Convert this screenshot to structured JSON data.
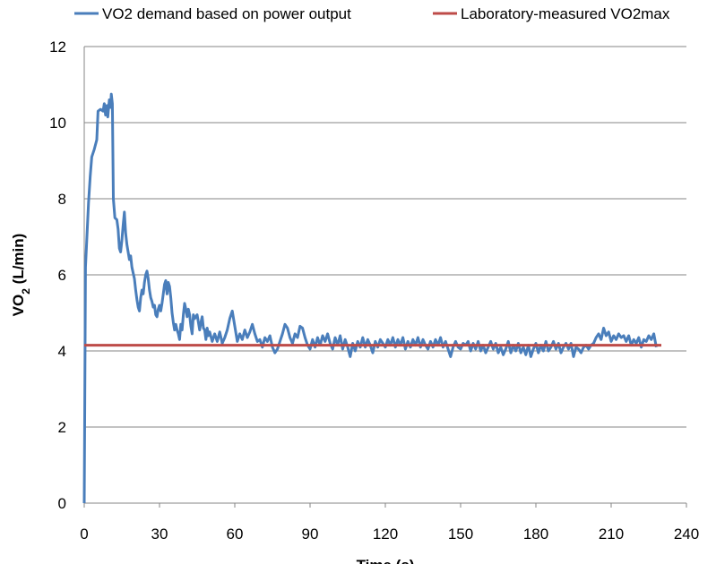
{
  "chart_data": {
    "type": "line",
    "xlabel": "Time (s)",
    "ylabel": {
      "main": "VO",
      "sub": "2",
      "rest": " (L/min)"
    },
    "xlim": [
      0,
      240
    ],
    "ylim": [
      0,
      12
    ],
    "x_ticks": [
      0,
      30,
      60,
      90,
      120,
      150,
      180,
      210,
      240
    ],
    "y_ticks": [
      0,
      2,
      4,
      6,
      8,
      10,
      12
    ],
    "grid": "horizontal",
    "legend_position": "top",
    "series": [
      {
        "name": "VO2 demand based on power output",
        "color": "#4a7ebb",
        "points": [
          [
            0,
            0
          ],
          [
            0.5,
            6.2
          ],
          [
            1,
            6.9
          ],
          [
            1.7,
            7.9
          ],
          [
            2.4,
            8.6
          ],
          [
            3,
            9.1
          ],
          [
            4,
            9.3
          ],
          [
            5,
            9.55
          ],
          [
            5.5,
            10.3
          ],
          [
            6.5,
            10.35
          ],
          [
            7.5,
            10.3
          ],
          [
            8,
            10.5
          ],
          [
            8.5,
            10.2
          ],
          [
            9,
            10.45
          ],
          [
            9.4,
            10.15
          ],
          [
            10,
            10.6
          ],
          [
            10.5,
            10.4
          ],
          [
            10.8,
            10.75
          ],
          [
            11.2,
            10.5
          ],
          [
            11.6,
            8.0
          ],
          [
            12.2,
            7.5
          ],
          [
            13,
            7.45
          ],
          [
            13.5,
            7.2
          ],
          [
            14,
            6.7
          ],
          [
            14.5,
            6.6
          ],
          [
            15,
            6.9
          ],
          [
            15.5,
            7.3
          ],
          [
            16,
            7.65
          ],
          [
            16.5,
            7.1
          ],
          [
            17,
            6.8
          ],
          [
            17.5,
            6.6
          ],
          [
            18,
            6.4
          ],
          [
            18.5,
            6.5
          ],
          [
            19,
            6.2
          ],
          [
            19.5,
            6.05
          ],
          [
            20,
            5.9
          ],
          [
            20.5,
            5.6
          ],
          [
            21,
            5.35
          ],
          [
            21.5,
            5.15
          ],
          [
            22,
            5.05
          ],
          [
            22.5,
            5.4
          ],
          [
            23,
            5.6
          ],
          [
            23.5,
            5.5
          ],
          [
            24,
            5.8
          ],
          [
            24.5,
            6.0
          ],
          [
            25,
            6.1
          ],
          [
            25.5,
            5.9
          ],
          [
            26,
            5.6
          ],
          [
            26.5,
            5.4
          ],
          [
            27,
            5.3
          ],
          [
            27.5,
            5.15
          ],
          [
            28,
            5.2
          ],
          [
            28.5,
            4.95
          ],
          [
            29,
            4.9
          ],
          [
            29.5,
            5.1
          ],
          [
            30,
            5.2
          ],
          [
            30.5,
            5.05
          ],
          [
            31,
            5.25
          ],
          [
            31.5,
            5.5
          ],
          [
            32,
            5.75
          ],
          [
            32.5,
            5.85
          ],
          [
            33,
            5.5
          ],
          [
            33.5,
            5.8
          ],
          [
            34,
            5.7
          ],
          [
            34.5,
            5.4
          ],
          [
            35,
            5.0
          ],
          [
            35.5,
            4.75
          ],
          [
            36,
            4.55
          ],
          [
            36.5,
            4.7
          ],
          [
            37,
            4.55
          ],
          [
            37.5,
            4.45
          ],
          [
            38,
            4.3
          ],
          [
            38.5,
            4.7
          ],
          [
            39,
            4.55
          ],
          [
            39.5,
            4.95
          ],
          [
            40,
            5.25
          ],
          [
            40.5,
            5.1
          ],
          [
            41,
            4.9
          ],
          [
            41.5,
            5.1
          ],
          [
            42,
            4.95
          ],
          [
            42.5,
            4.65
          ],
          [
            43,
            4.45
          ],
          [
            43.5,
            4.95
          ],
          [
            44,
            4.85
          ],
          [
            45,
            4.95
          ],
          [
            45.5,
            4.75
          ],
          [
            46,
            4.55
          ],
          [
            46.5,
            4.75
          ],
          [
            47,
            4.9
          ],
          [
            47.5,
            4.6
          ],
          [
            48,
            4.55
          ],
          [
            48.5,
            4.3
          ],
          [
            49,
            4.6
          ],
          [
            49.5,
            4.4
          ],
          [
            50,
            4.5
          ],
          [
            51,
            4.25
          ],
          [
            52,
            4.45
          ],
          [
            53,
            4.25
          ],
          [
            54,
            4.5
          ],
          [
            55,
            4.2
          ],
          [
            56,
            4.35
          ],
          [
            57,
            4.55
          ],
          [
            58,
            4.85
          ],
          [
            59,
            5.05
          ],
          [
            60,
            4.65
          ],
          [
            61,
            4.25
          ],
          [
            62,
            4.45
          ],
          [
            63,
            4.3
          ],
          [
            64,
            4.55
          ],
          [
            65,
            4.35
          ],
          [
            66,
            4.5
          ],
          [
            67,
            4.7
          ],
          [
            68,
            4.45
          ],
          [
            69,
            4.25
          ],
          [
            70,
            4.3
          ],
          [
            71,
            4.1
          ],
          [
            72,
            4.35
          ],
          [
            73,
            4.25
          ],
          [
            74,
            4.4
          ],
          [
            75,
            4.1
          ],
          [
            76,
            3.95
          ],
          [
            77,
            4.05
          ],
          [
            78,
            4.25
          ],
          [
            79,
            4.45
          ],
          [
            80,
            4.7
          ],
          [
            81,
            4.6
          ],
          [
            82,
            4.35
          ],
          [
            83,
            4.2
          ],
          [
            84,
            4.45
          ],
          [
            85,
            4.35
          ],
          [
            86,
            4.65
          ],
          [
            87,
            4.6
          ],
          [
            88,
            4.35
          ],
          [
            89,
            4.15
          ],
          [
            90,
            4.05
          ],
          [
            91,
            4.3
          ],
          [
            92,
            4.1
          ],
          [
            93,
            4.35
          ],
          [
            94,
            4.15
          ],
          [
            95,
            4.4
          ],
          [
            96,
            4.25
          ],
          [
            97,
            4.45
          ],
          [
            98,
            4.2
          ],
          [
            99,
            4.05
          ],
          [
            100,
            4.35
          ],
          [
            101,
            4.15
          ],
          [
            102,
            4.4
          ],
          [
            103,
            4.05
          ],
          [
            104,
            4.3
          ],
          [
            105,
            4.1
          ],
          [
            106,
            3.85
          ],
          [
            107,
            4.2
          ],
          [
            108,
            4.0
          ],
          [
            109,
            4.25
          ],
          [
            110,
            4.1
          ],
          [
            111,
            4.35
          ],
          [
            112,
            4.1
          ],
          [
            113,
            4.3
          ],
          [
            114,
            4.15
          ],
          [
            115,
            3.95
          ],
          [
            116,
            4.25
          ],
          [
            117,
            4.1
          ],
          [
            118,
            4.3
          ],
          [
            119,
            4.2
          ],
          [
            120,
            4.1
          ],
          [
            121,
            4.3
          ],
          [
            122,
            4.15
          ],
          [
            123,
            4.35
          ],
          [
            124,
            4.1
          ],
          [
            125,
            4.3
          ],
          [
            126,
            4.15
          ],
          [
            127,
            4.35
          ],
          [
            128,
            4.05
          ],
          [
            129,
            4.25
          ],
          [
            130,
            4.1
          ],
          [
            131,
            4.3
          ],
          [
            132,
            4.15
          ],
          [
            133,
            4.35
          ],
          [
            134,
            4.1
          ],
          [
            135,
            4.3
          ],
          [
            136,
            4.15
          ],
          [
            137,
            4.05
          ],
          [
            138,
            4.25
          ],
          [
            139,
            4.1
          ],
          [
            140,
            4.3
          ],
          [
            141,
            4.15
          ],
          [
            142,
            4.35
          ],
          [
            143,
            4.1
          ],
          [
            144,
            4.25
          ],
          [
            145,
            4.05
          ],
          [
            146,
            3.85
          ],
          [
            147,
            4.1
          ],
          [
            148,
            4.25
          ],
          [
            149,
            4.1
          ],
          [
            150,
            4.05
          ],
          [
            151,
            4.2
          ],
          [
            152,
            4.15
          ],
          [
            153,
            4.25
          ],
          [
            154,
            4.0
          ],
          [
            155,
            4.2
          ],
          [
            156,
            4.05
          ],
          [
            157,
            4.25
          ],
          [
            158,
            4.0
          ],
          [
            159,
            4.15
          ],
          [
            160,
            3.95
          ],
          [
            161,
            4.1
          ],
          [
            162,
            4.25
          ],
          [
            163,
            4.05
          ],
          [
            164,
            4.2
          ],
          [
            165,
            3.95
          ],
          [
            166,
            4.1
          ],
          [
            167,
            3.9
          ],
          [
            168,
            4.05
          ],
          [
            169,
            4.25
          ],
          [
            170,
            3.95
          ],
          [
            171,
            4.15
          ],
          [
            172,
            4.0
          ],
          [
            173,
            4.2
          ],
          [
            174,
            3.95
          ],
          [
            175,
            4.1
          ],
          [
            176,
            3.9
          ],
          [
            177,
            4.15
          ],
          [
            178,
            3.85
          ],
          [
            179,
            4.05
          ],
          [
            180,
            4.2
          ],
          [
            181,
            3.95
          ],
          [
            182,
            4.15
          ],
          [
            183,
            4.0
          ],
          [
            184,
            4.25
          ],
          [
            185,
            4.0
          ],
          [
            186,
            4.1
          ],
          [
            187,
            4.25
          ],
          [
            188,
            4.05
          ],
          [
            189,
            4.2
          ],
          [
            190,
            3.95
          ],
          [
            191,
            4.1
          ],
          [
            192,
            4.2
          ],
          [
            193,
            4.05
          ],
          [
            194,
            4.2
          ],
          [
            195,
            3.85
          ],
          [
            196,
            4.1
          ],
          [
            197,
            4.05
          ],
          [
            198,
            3.95
          ],
          [
            199,
            4.1
          ],
          [
            200,
            4.15
          ],
          [
            201,
            4.05
          ],
          [
            202,
            4.15
          ],
          [
            203,
            4.2
          ],
          [
            204,
            4.35
          ],
          [
            205,
            4.45
          ],
          [
            206,
            4.3
          ],
          [
            207,
            4.6
          ],
          [
            208,
            4.4
          ],
          [
            209,
            4.5
          ],
          [
            210,
            4.25
          ],
          [
            211,
            4.4
          ],
          [
            212,
            4.3
          ],
          [
            213,
            4.45
          ],
          [
            214,
            4.35
          ],
          [
            215,
            4.4
          ],
          [
            216,
            4.25
          ],
          [
            217,
            4.4
          ],
          [
            218,
            4.15
          ],
          [
            219,
            4.3
          ],
          [
            220,
            4.2
          ],
          [
            221,
            4.35
          ],
          [
            222,
            4.1
          ],
          [
            223,
            4.3
          ],
          [
            224,
            4.25
          ],
          [
            225,
            4.4
          ],
          [
            226,
            4.3
          ],
          [
            227,
            4.45
          ],
          [
            228,
            4.1
          ]
        ]
      },
      {
        "name": "Laboratory-measured VO2max",
        "color": "#be4b48",
        "points": [
          [
            0,
            4.15
          ],
          [
            230,
            4.15
          ]
        ]
      }
    ]
  }
}
